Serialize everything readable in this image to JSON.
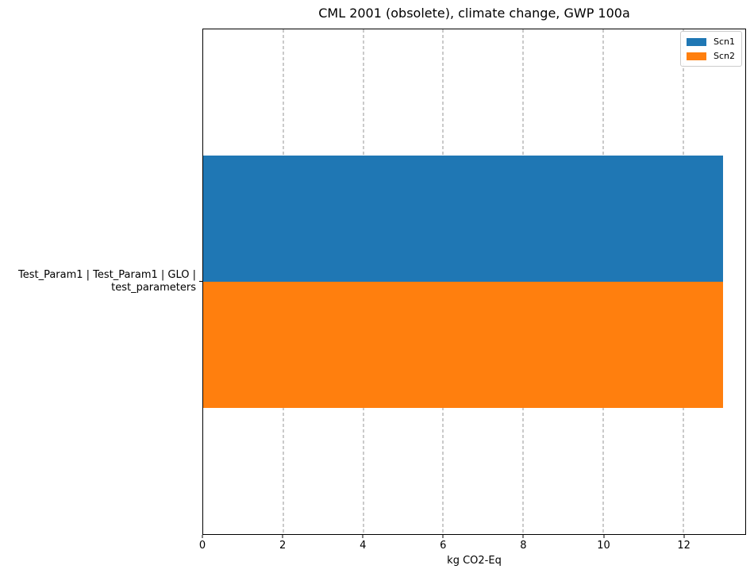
{
  "chart_data": {
    "type": "bar",
    "orientation": "horizontal",
    "title": "CML 2001 (obsolete), climate change, GWP 100a",
    "xlabel": "kg CO2-Eq",
    "ylabel": "",
    "categories": [
      "Test_Param1 | Test_Param1 | GLO | test_parameters"
    ],
    "category_display_lines": [
      "Test_Param1 | Test_Param1 | GLO |",
      "test_parameters"
    ],
    "series": [
      {
        "name": "Scn1",
        "color": "#1f77b4",
        "values": [
          13.0
        ]
      },
      {
        "name": "Scn2",
        "color": "#ff7f0e",
        "values": [
          13.0
        ]
      }
    ],
    "xlim": [
      0,
      13.55
    ],
    "xticks": [
      0,
      2,
      4,
      6,
      8,
      10,
      12
    ],
    "grid": "vertical-dashed",
    "gridline_color": "#949494",
    "legend_position": "upper-right",
    "bar_group_fraction": 0.5
  }
}
